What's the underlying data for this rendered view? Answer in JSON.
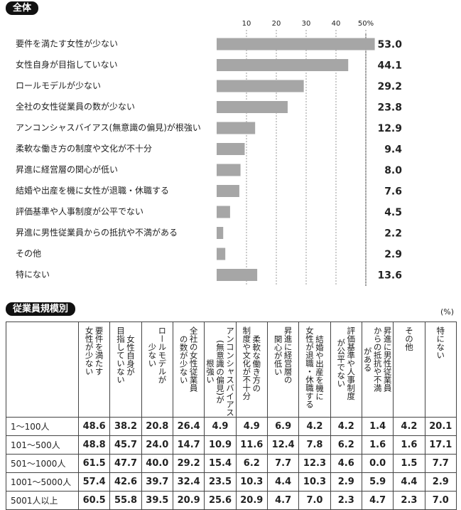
{
  "chart_data": {
    "type": "hbar",
    "title": "全体",
    "categories": [
      "要件を満たす女性が少ない",
      "女性自身が目指していない",
      "ロールモデルが少ない",
      "全社の女性従業員の数が少ない",
      "アンコンシャスバイアス(無意識の偏見)が根強い",
      "柔軟な働き方の制度や文化が不十分",
      "昇進に経営層の関心が低い",
      "結婚や出産を機に女性が退職・休職する",
      "評価基準や人事制度が公平でない",
      "昇進に男性従業員からの抵抗や不満がある",
      "その他",
      "特にない"
    ],
    "values": [
      53.0,
      44.1,
      29.2,
      23.8,
      12.9,
      9.4,
      8.0,
      7.6,
      4.5,
      2.2,
      2.9,
      13.6
    ],
    "value_labels": [
      "53.0",
      "44.1",
      "29.2",
      "23.8",
      "12.9",
      "9.4",
      "8.0",
      "7.6",
      "4.5",
      "2.2",
      "2.9",
      "13.6"
    ],
    "color": "#a6a6a6",
    "xlim": [
      0,
      55
    ],
    "xticks": [
      10,
      20,
      30,
      40,
      {
        "value": 50,
        "label": "50%"
      }
    ],
    "grid": true
  },
  "table": {
    "title": "従業員規模別",
    "unit": "(%)",
    "header": [
      "要件を満たす\n女性が少ない",
      "女性自身が\n目指していない",
      "ロールモデルが\n少ない",
      "全社の女性従業員\nの数が少ない",
      "アンコンシャスバイアス\n(無意識の偏見)が\n根強い",
      "柔軟な働き方の\n制度や文化が不十分",
      "昇進に経営層の\n関心が低い",
      "結婚や出産を機に\n女性が退職・休職する",
      "評価基準や人事制度\nが公平でない",
      "昇進に男性従業員\nからの抵抗や不満\nがある",
      "その他",
      "特にない"
    ],
    "rows": [
      {
        "label": "1～100人",
        "cells": [
          "48.6",
          "38.2",
          "20.8",
          "26.4",
          "4.9",
          "4.9",
          "6.9",
          "4.2",
          "4.2",
          "1.4",
          "4.2",
          "20.1"
        ]
      },
      {
        "label": "101～500人",
        "cells": [
          "48.8",
          "45.7",
          "24.0",
          "14.7",
          "10.9",
          "11.6",
          "12.4",
          "7.8",
          "6.2",
          "1.6",
          "1.6",
          "17.1"
        ]
      },
      {
        "label": "501～1000人",
        "cells": [
          "61.5",
          "47.7",
          "40.0",
          "29.2",
          "15.4",
          "6.2",
          "7.7",
          "12.3",
          "4.6",
          "0.0",
          "1.5",
          "7.7"
        ]
      },
      {
        "label": "1001～5000人",
        "cells": [
          "57.4",
          "42.6",
          "39.7",
          "32.4",
          "23.5",
          "10.3",
          "4.4",
          "10.3",
          "2.9",
          "5.9",
          "4.4",
          "2.9"
        ]
      },
      {
        "label": "5001人以上",
        "cells": [
          "60.5",
          "55.8",
          "39.5",
          "20.9",
          "25.6",
          "20.9",
          "4.7",
          "7.0",
          "2.3",
          "4.7",
          "2.3",
          "7.0"
        ]
      }
    ]
  }
}
